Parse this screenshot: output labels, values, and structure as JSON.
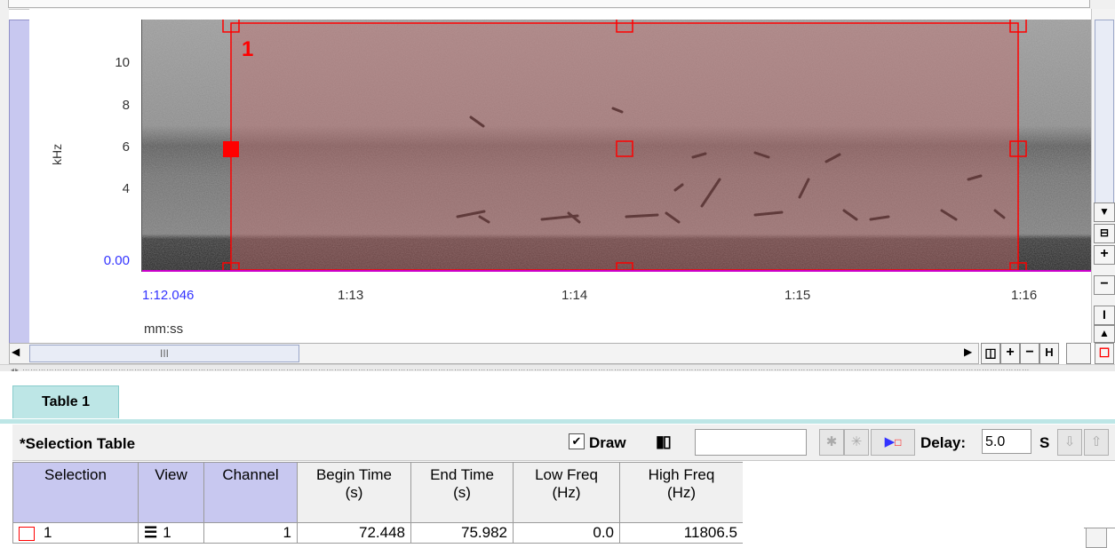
{
  "view": {
    "y_axis": {
      "unit": "kHz",
      "ticks": [
        "10",
        "8",
        "6",
        "4"
      ],
      "bottom_value": "0.00"
    },
    "x_axis": {
      "start": "1:12.046",
      "ticks": [
        "1:13",
        "1:14",
        "1:15",
        "1:16"
      ],
      "format_label": "mm:ss"
    },
    "selection": {
      "number": "1",
      "begin_time": 72.448,
      "end_time": 75.982,
      "low_freq_hz": 0.0,
      "high_freq_hz": 11806.5
    },
    "colors": {
      "selection_border": "#ff0000",
      "selection_fill": "#b06b6b",
      "axis_blue": "#3333ff",
      "strip": "#c8c8f0"
    }
  },
  "scrollbar": {
    "thumb_label": "III"
  },
  "tabs": [
    {
      "label": "Table 1"
    }
  ],
  "toolbar": {
    "title": "*Selection Table",
    "draw_label": "Draw",
    "draw_checked": "✔",
    "delay_label": "Delay:",
    "delay_value": "5.0",
    "delay_unit": "S"
  },
  "table": {
    "headers": [
      [
        "Selection",
        ""
      ],
      [
        "View",
        ""
      ],
      [
        "Channel",
        ""
      ],
      [
        "Begin Time",
        "(s)"
      ],
      [
        "End Time",
        "(s)"
      ],
      [
        "Low Freq",
        "(Hz)"
      ],
      [
        "High Freq",
        "(Hz)"
      ]
    ],
    "rows": [
      {
        "selection": "1",
        "view": "1",
        "channel": "1",
        "begin": "72.448",
        "end": "75.982",
        "low": "0.0",
        "high": "11806.5"
      }
    ]
  }
}
